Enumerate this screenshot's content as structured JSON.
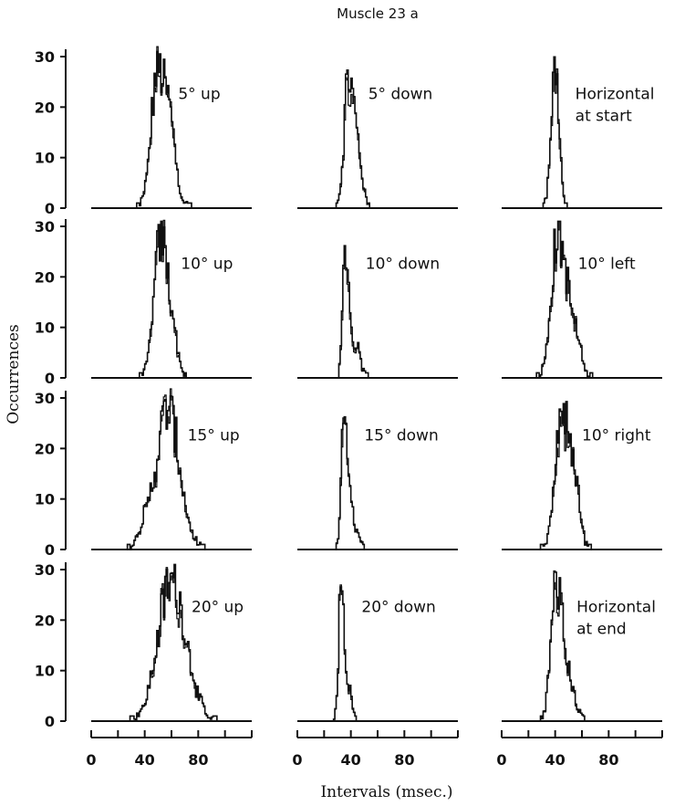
{
  "chart_data": {
    "type": "histogram-grid",
    "title": "Muscle 23 a",
    "xlabel": "Intervals (msec.)",
    "ylabel": "Occurrences",
    "ylim": [
      0,
      30
    ],
    "y_ticks": [
      "0",
      "10",
      "20",
      "30"
    ],
    "xlim": [
      0,
      120
    ],
    "x_ticks": [
      "0",
      "40",
      "80"
    ],
    "x_tick_values": [
      0,
      40,
      80
    ],
    "x_minor_step": 10,
    "bin_width_msec": 1,
    "grid": false,
    "line_color": "#111111",
    "panels": [
      {
        "row": 0,
        "col": 0,
        "label": [
          "5° up"
        ],
        "mode": 50,
        "peak": 31,
        "spread_left": 5,
        "spread_right": 8,
        "sub": [
          {
            "at": 60,
            "amp": 6,
            "w": 3
          }
        ]
      },
      {
        "row": 0,
        "col": 1,
        "label": [
          "5° down"
        ],
        "mode": 38,
        "peak": 29,
        "spread_left": 3,
        "spread_right": 5,
        "sub": [
          {
            "at": 46,
            "amp": 6,
            "w": 3
          }
        ]
      },
      {
        "row": 0,
        "col": 2,
        "label": [
          "Horizontal",
          "at start"
        ],
        "mode": 40,
        "peak": 31,
        "spread_left": 3,
        "spread_right": 3,
        "sub": []
      },
      {
        "row": 1,
        "col": 0,
        "label": [
          "10° up"
        ],
        "mode": 52,
        "peak": 31,
        "spread_left": 5,
        "spread_right": 6,
        "sub": [
          {
            "at": 62,
            "amp": 5,
            "w": 3
          }
        ]
      },
      {
        "row": 1,
        "col": 1,
        "label": [
          "10° down"
        ],
        "mode": 36,
        "peak": 28,
        "spread_left": 2,
        "spread_right": 3,
        "sub": [
          {
            "at": 45,
            "amp": 6,
            "w": 3
          }
        ]
      },
      {
        "row": 1,
        "col": 2,
        "label": [
          "10° left"
        ],
        "mode": 42,
        "peak": 31,
        "spread_left": 5,
        "spread_right": 7,
        "sub": [
          {
            "at": 55,
            "amp": 6,
            "w": 5
          }
        ]
      },
      {
        "row": 2,
        "col": 0,
        "label": [
          "15° up"
        ],
        "mode": 57,
        "peak": 31,
        "spread_left": 8,
        "spread_right": 9,
        "sub": [
          {
            "at": 40,
            "amp": 5,
            "w": 5
          }
        ]
      },
      {
        "row": 2,
        "col": 1,
        "label": [
          "15° down"
        ],
        "mode": 35,
        "peak": 31,
        "spread_left": 2,
        "spread_right": 3,
        "sub": [
          {
            "at": 43,
            "amp": 5,
            "w": 3
          }
        ]
      },
      {
        "row": 2,
        "col": 2,
        "label": [
          "10° right"
        ],
        "mode": 45,
        "peak": 31,
        "spread_left": 5,
        "spread_right": 7,
        "sub": [
          {
            "at": 56,
            "amp": 7,
            "w": 3
          }
        ]
      },
      {
        "row": 3,
        "col": 0,
        "label": [
          "20° up"
        ],
        "mode": 60,
        "peak": 31,
        "spread_left": 10,
        "spread_right": 11,
        "sub": []
      },
      {
        "row": 3,
        "col": 1,
        "label": [
          "20° down"
        ],
        "mode": 33,
        "peak": 31,
        "spread_left": 2,
        "spread_right": 2,
        "sub": [
          {
            "at": 39,
            "amp": 7,
            "w": 2
          }
        ]
      },
      {
        "row": 3,
        "col": 2,
        "label": [
          "Horizontal",
          "at end"
        ],
        "mode": 41,
        "peak": 31,
        "spread_left": 4,
        "spread_right": 5,
        "sub": [
          {
            "at": 52,
            "amp": 6,
            "w": 4
          }
        ]
      }
    ]
  }
}
